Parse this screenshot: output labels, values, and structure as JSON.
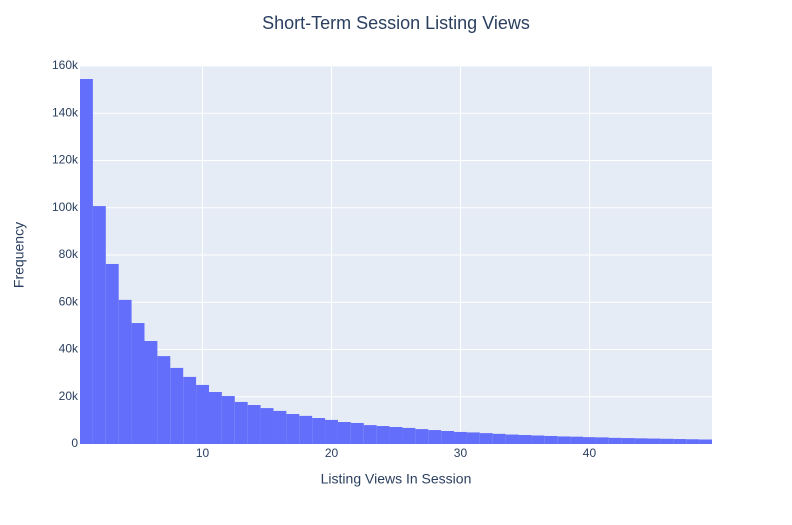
{
  "chart_data": {
    "type": "histogram",
    "title": "Short-Term Session Listing Views",
    "x_label": "Listing Views In Session",
    "y_label": "Frequency",
    "color": "#636efa",
    "bins": [
      0.5,
      1.5,
      2.5,
      3.5,
      4.5,
      5.5,
      6.5,
      7.5,
      8.5,
      9.5,
      10.5,
      11.5,
      12.5,
      13.5,
      14.5,
      15.5,
      16.5,
      17.5,
      18.5,
      19.5,
      20.5,
      21.5,
      22.5,
      23.5,
      24.5,
      25.5,
      26.5,
      27.5,
      28.5,
      29.5,
      30.5,
      31.5,
      32.5,
      33.5,
      34.5,
      35.5,
      36.5,
      37.5,
      38.5,
      39.5,
      40.5,
      41.5,
      42.5,
      43.5,
      44.5,
      45.5,
      46.5,
      47.5,
      48.5,
      49.5
    ],
    "values": [
      154500,
      100700,
      76200,
      61000,
      51200,
      43600,
      37200,
      32200,
      28400,
      25000,
      22000,
      20300,
      17800,
      16500,
      15200,
      14000,
      12700,
      11900,
      11000,
      10200,
      9300,
      8900,
      8000,
      7600,
      7200,
      6800,
      6300,
      5900,
      5500,
      5100,
      4900,
      4600,
      4300,
      4000,
      3800,
      3600,
      3400,
      3200,
      3100,
      2900,
      2800,
      2600,
      2500,
      2400,
      2300,
      2200,
      2100,
      2000,
      1900
    ],
    "xlim": [
      0.5,
      49.5
    ],
    "xticks": [
      10,
      20,
      30,
      40
    ],
    "ylim": [
      0,
      160000
    ],
    "yticks": [
      0,
      {
        "value": 20000,
        "label": "20k"
      },
      {
        "value": 40000,
        "label": "40k"
      },
      {
        "value": 60000,
        "label": "60k"
      },
      {
        "value": 80000,
        "label": "80k"
      },
      {
        "value": 100000,
        "label": "100k"
      },
      {
        "value": 120000,
        "label": "120k"
      },
      {
        "value": 140000,
        "label": "140k"
      },
      {
        "value": 160000,
        "label": "160k"
      }
    ],
    "grid": true
  }
}
